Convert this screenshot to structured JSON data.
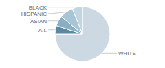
{
  "chart_data": {
    "type": "pie",
    "categories": [
      "WHITE",
      "A.I.",
      "ASIAN",
      "HISPANIC",
      "BLACK"
    ],
    "values": [
      75,
      5,
      6,
      8,
      6
    ],
    "colors": [
      "#cdd9e2",
      "#5b87a0",
      "#8aafc4",
      "#a8c5d5",
      "#c0d6e2"
    ]
  }
}
